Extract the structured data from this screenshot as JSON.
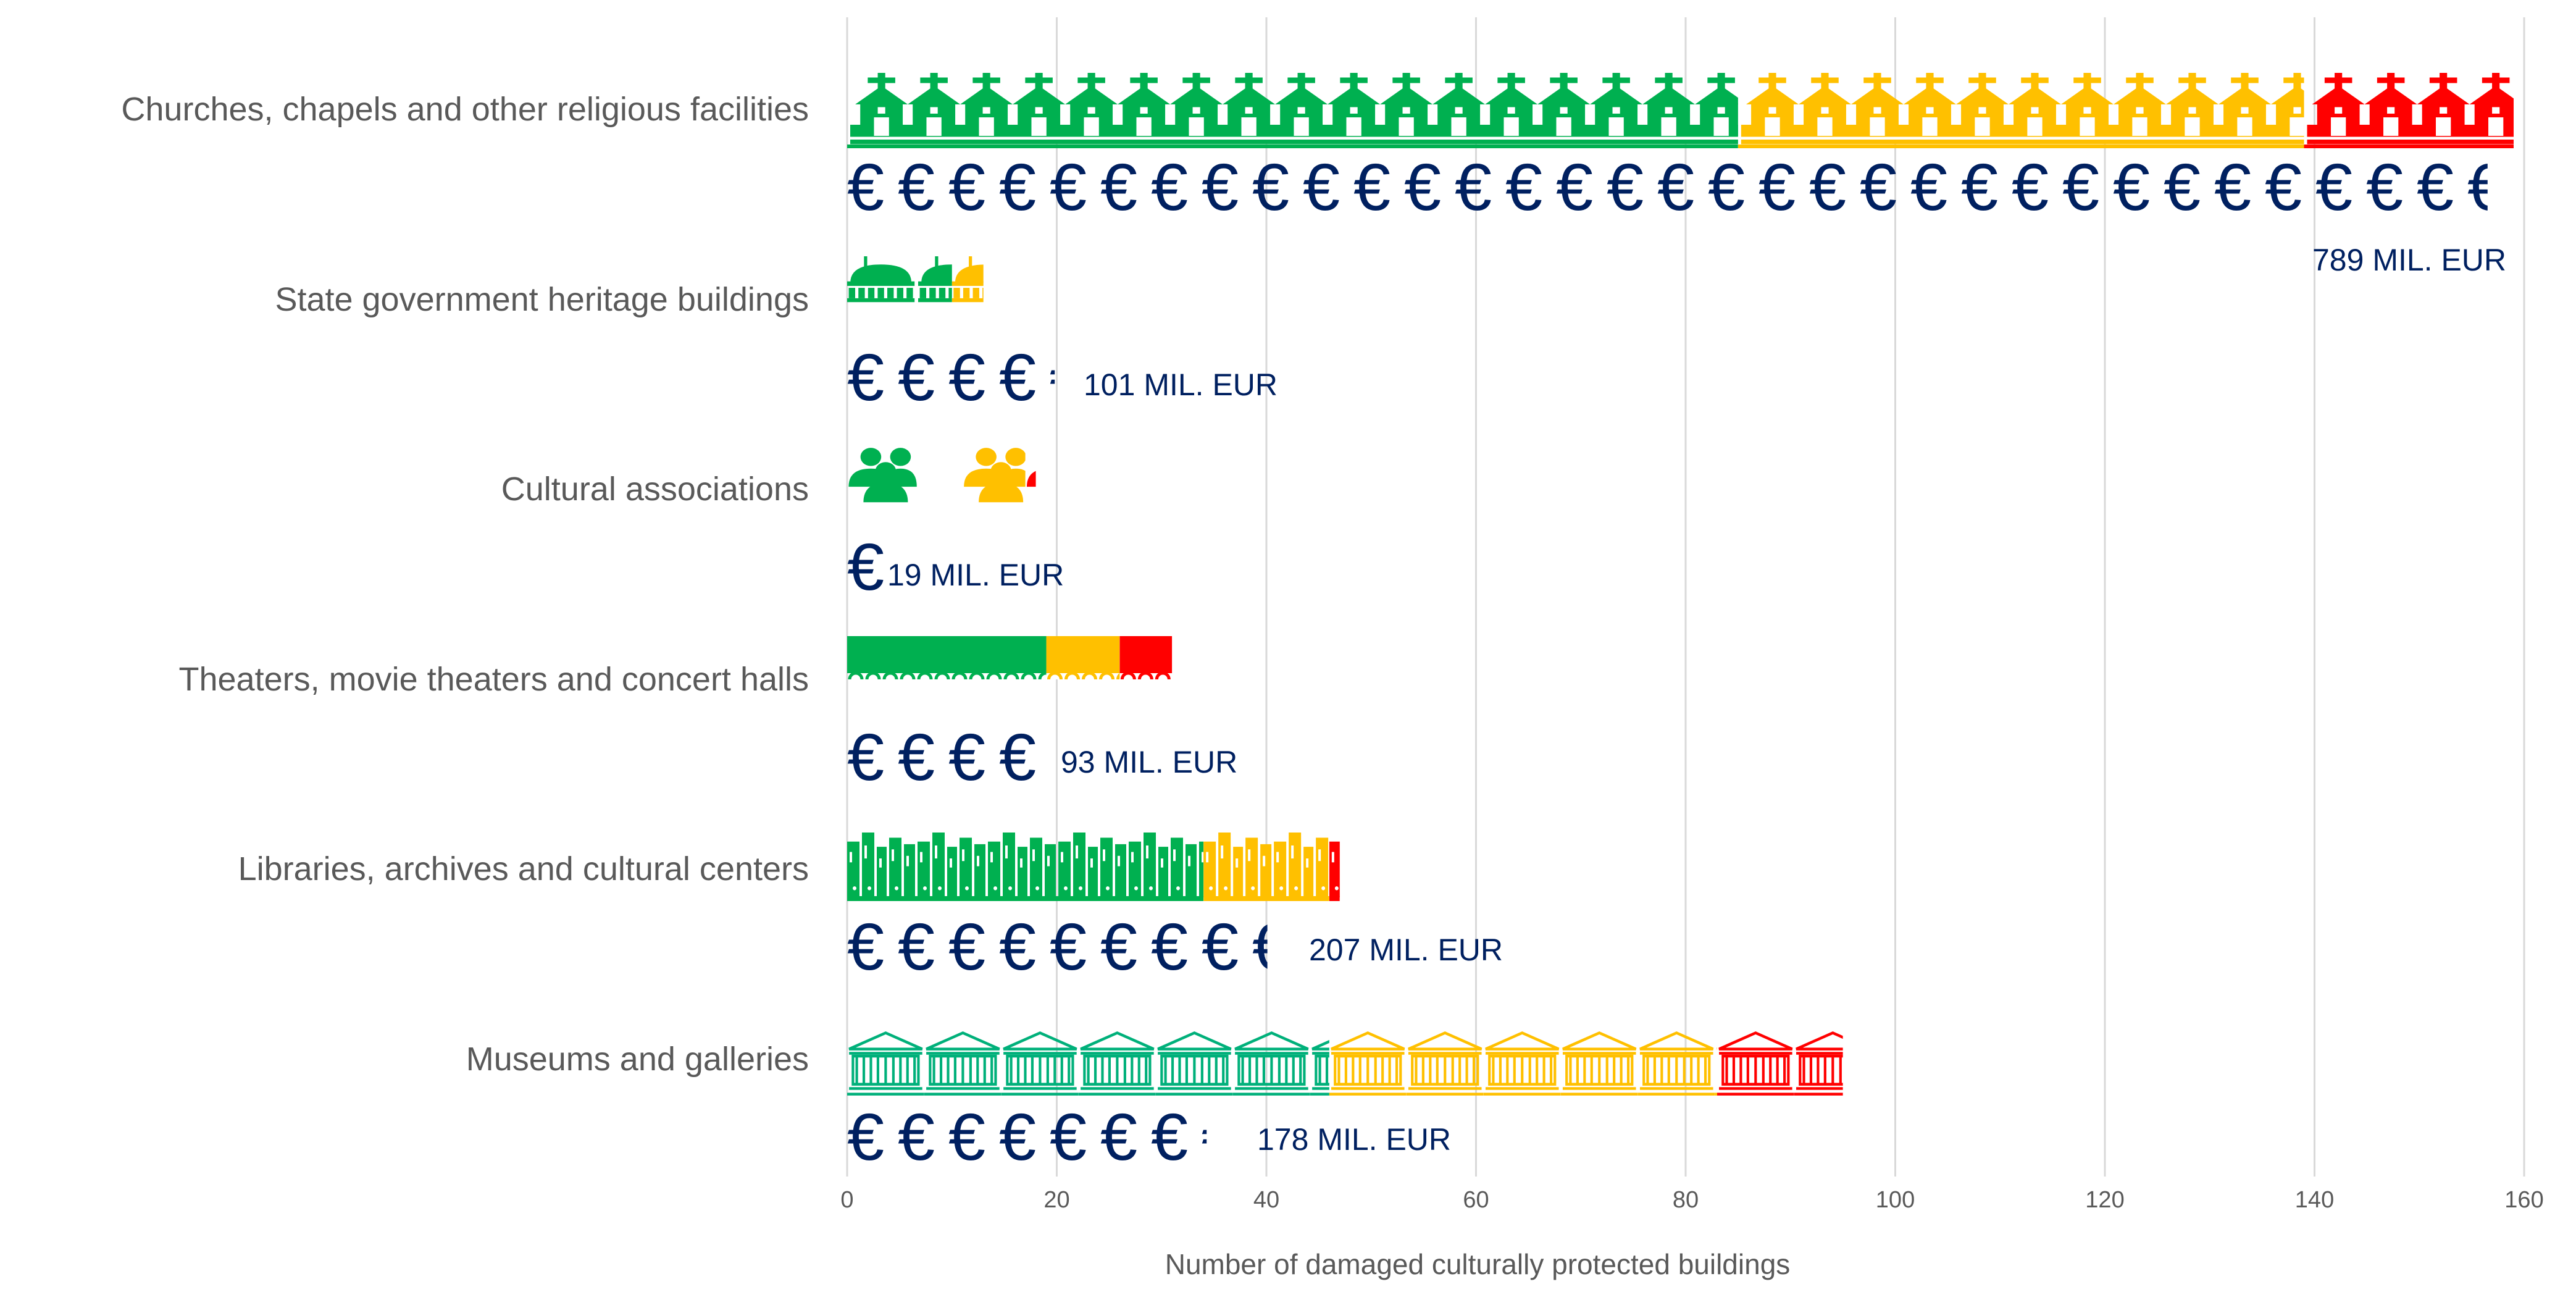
{
  "chart_data": {
    "type": "bar",
    "title": "",
    "xlabel": "Number of damaged culturally protected buildings",
    "ylabel": "",
    "xlim": [
      0,
      160
    ],
    "xticks": [
      0,
      20,
      40,
      60,
      80,
      100,
      120,
      140,
      160
    ],
    "grid": true,
    "orientation": "horizontal",
    "stacked": true,
    "legend": "none",
    "colors": {
      "green": "#00b050",
      "yellow": "#ffc000",
      "red": "#ff0000",
      "euro": "#002060",
      "museum_green": "#00b07a"
    },
    "categories": [
      "Churches, chapels and other religious facilities",
      "State government heritage buildings",
      "Cultural associations",
      "Theaters, movie theaters and concert halls",
      "Libraries, archives and cultural centers",
      "Museums and galleries"
    ],
    "series": [
      {
        "name": "green",
        "color": "#00b050",
        "values": [
          85,
          10,
          11,
          19,
          34,
          46
        ]
      },
      {
        "name": "yellow",
        "color": "#ffc000",
        "values": [
          54,
          3,
          6,
          7,
          12,
          37
        ]
      },
      {
        "name": "red",
        "color": "#ff0000",
        "values": [
          20,
          0,
          1,
          5,
          1,
          12
        ]
      }
    ],
    "icons": [
      "church-icon",
      "government-building-icon",
      "people-icon",
      "theater-seats-icon",
      "books-icon",
      "museum-icon"
    ],
    "damage_costs": [
      "789 MIL. EUR",
      "101 MIL. EUR",
      "19 MIL. EUR",
      "93 MIL. EUR",
      "207 MIL. EUR",
      "178 MIL. EUR"
    ],
    "euro_symbol": "€",
    "euro_counts": [
      32.4,
      4.1,
      0.75,
      3.75,
      8.3,
      7.1
    ]
  }
}
